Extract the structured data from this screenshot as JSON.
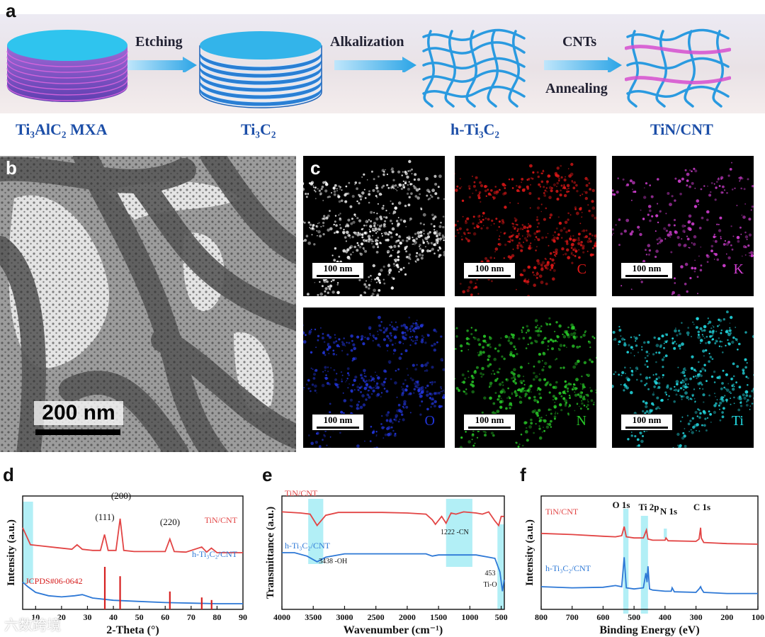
{
  "panel_a": {
    "label": "a",
    "steps": [
      "Etching",
      "Alkalization",
      "CNTs",
      "Annealing"
    ],
    "materials": [
      "Ti₃AlC₂ MXA",
      "Ti₃C₂",
      "h-Ti₃C₂",
      "TiN/CNT"
    ]
  },
  "panel_b": {
    "label": "b",
    "scale_bar": "200 nm"
  },
  "panel_c": {
    "label": "c",
    "tiles": [
      {
        "element": "",
        "scale": "100 nm",
        "color": "#ffffff"
      },
      {
        "element": "C",
        "scale": "100 nm",
        "color": "#e01818"
      },
      {
        "element": "K",
        "scale": "100 nm",
        "color": "#d43fd4"
      },
      {
        "element": "O",
        "scale": "100 nm",
        "color": "#2235d8"
      },
      {
        "element": "N",
        "scale": "100 nm",
        "color": "#28c828"
      },
      {
        "element": "Ti",
        "scale": "100 nm",
        "color": "#22d8e0"
      }
    ]
  },
  "chart_data": [
    {
      "type": "line",
      "panel": "d",
      "xlabel": "2-Theta (°)",
      "ylabel": "Intensity (a.u.)",
      "xlim": [
        5,
        90
      ],
      "xticks": [
        10,
        20,
        30,
        40,
        50,
        60,
        70,
        80,
        90
      ],
      "series": [
        {
          "name": "TiN/CNT",
          "color": "#e24444",
          "x": [
            5,
            8,
            12,
            18,
            24,
            26,
            28,
            32,
            35,
            36.6,
            38,
            41,
            42.6,
            44,
            48,
            55,
            60,
            61.8,
            63.5,
            68,
            74.1,
            76,
            77.8,
            80,
            85,
            90
          ],
          "y": [
            0.72,
            0.57,
            0.56,
            0.545,
            0.53,
            0.57,
            0.53,
            0.52,
            0.52,
            0.66,
            0.52,
            0.52,
            0.8,
            0.52,
            0.51,
            0.51,
            0.51,
            0.62,
            0.51,
            0.505,
            0.55,
            0.505,
            0.54,
            0.5,
            0.5,
            0.5
          ]
        },
        {
          "name": "h-Ti₃C₂/CNT",
          "color": "#2d78d6",
          "x": [
            5,
            7,
            10,
            15,
            20,
            25,
            28,
            32,
            40,
            50,
            60,
            70,
            80,
            90
          ],
          "y": [
            0.24,
            0.2,
            0.15,
            0.12,
            0.11,
            0.12,
            0.13,
            0.1,
            0.08,
            0.07,
            0.06,
            0.055,
            0.05,
            0.05
          ]
        }
      ],
      "annotations": [
        "(111)",
        "(200)",
        "(220)"
      ],
      "reference": {
        "name": "JCPDS#06-0642",
        "color": "#d62020",
        "x": [
          36.7,
          42.6,
          61.8,
          74.1,
          77.9
        ],
        "h": [
          1.0,
          0.78,
          0.42,
          0.28,
          0.22
        ]
      }
    },
    {
      "type": "line",
      "panel": "e",
      "xlabel": "Wavenumber (cm⁻¹)",
      "ylabel": "Transmittance (a.u.)",
      "xlim": [
        4000,
        450
      ],
      "xticks": [
        4000,
        3500,
        3000,
        2500,
        2000,
        1500,
        1000,
        500
      ],
      "series": [
        {
          "name": "TiN/CNT",
          "color": "#e24444",
          "x": [
            4000,
            3700,
            3550,
            3438,
            3300,
            3100,
            2800,
            2400,
            2000,
            1700,
            1600,
            1550,
            1450,
            1380,
            1300,
            1222,
            1100,
            900,
            800,
            700,
            600,
            540,
            500,
            453
          ],
          "y": [
            0.86,
            0.85,
            0.84,
            0.74,
            0.83,
            0.855,
            0.855,
            0.855,
            0.85,
            0.84,
            0.79,
            0.75,
            0.82,
            0.76,
            0.85,
            0.84,
            0.86,
            0.85,
            0.84,
            0.86,
            0.78,
            0.74,
            0.82,
            0.82
          ]
        },
        {
          "name": "h-Ti₃C₂/CNT",
          "color": "#2d78d6",
          "x": [
            4000,
            3800,
            3600,
            3438,
            3300,
            3000,
            2500,
            2000,
            1700,
            1600,
            1500,
            1400,
            1300,
            1100,
            900,
            700,
            600,
            520,
            480,
            453
          ],
          "y": [
            0.5,
            0.5,
            0.47,
            0.42,
            0.46,
            0.49,
            0.49,
            0.49,
            0.49,
            0.47,
            0.48,
            0.48,
            0.48,
            0.48,
            0.48,
            0.46,
            0.45,
            0.33,
            0.16,
            0.26
          ]
        }
      ],
      "annotations": [
        "3438 -OH",
        "1222 -CN",
        "453",
        "Ti-O"
      ]
    },
    {
      "type": "line",
      "panel": "f",
      "xlabel": "Binding Energy (eV)",
      "ylabel": "Intensity (a.u.)",
      "xlim": [
        800,
        100
      ],
      "xticks": [
        800,
        700,
        600,
        500,
        400,
        300,
        200,
        100
      ],
      "series": [
        {
          "name": "TiN/CNT",
          "color": "#e24444",
          "x": [
            800,
            700,
            600,
            560,
            540,
            532,
            525,
            500,
            470,
            460,
            455,
            440,
            400,
            397,
            390,
            300,
            290,
            285,
            283,
            275,
            200,
            100
          ],
          "y": [
            0.67,
            0.66,
            0.645,
            0.64,
            0.65,
            0.73,
            0.64,
            0.63,
            0.63,
            0.7,
            0.62,
            0.61,
            0.61,
            0.63,
            0.605,
            0.6,
            0.62,
            0.72,
            0.63,
            0.59,
            0.58,
            0.575
          ]
        },
        {
          "name": "h-Ti₃C₂/CNT",
          "color": "#2d78d6",
          "x": [
            800,
            700,
            600,
            560,
            540,
            532,
            525,
            500,
            470,
            462,
            458,
            455,
            450,
            440,
            400,
            380,
            377,
            370,
            300,
            290,
            285,
            282,
            275,
            200,
            100
          ],
          "y": [
            0.2,
            0.19,
            0.195,
            0.21,
            0.2,
            0.46,
            0.19,
            0.18,
            0.19,
            0.32,
            0.24,
            0.38,
            0.18,
            0.17,
            0.16,
            0.16,
            0.19,
            0.155,
            0.15,
            0.18,
            0.2,
            0.18,
            0.15,
            0.14,
            0.14
          ]
        }
      ],
      "annotations": [
        "O 1s",
        "Ti 2p",
        "N 1s",
        "C 1s"
      ]
    }
  ],
  "watermark": "六数跨境"
}
